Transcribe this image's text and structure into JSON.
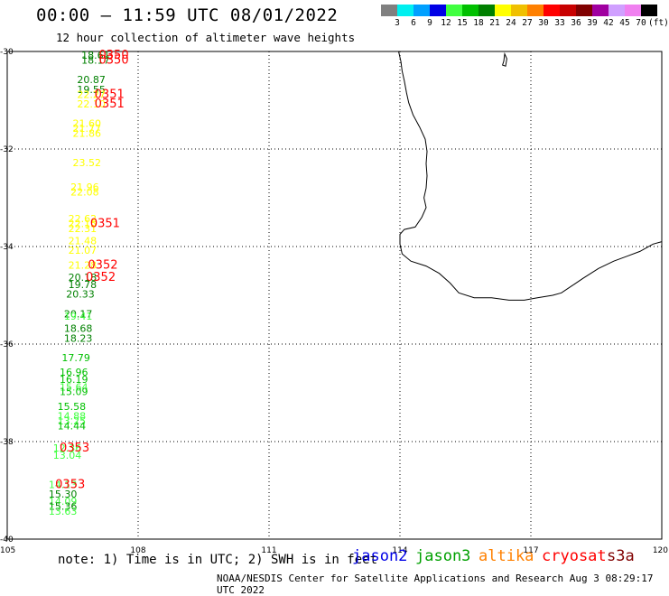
{
  "header": {
    "title": "00:00 – 11:59 UTC 08/01/2022",
    "subtitle": "12 hour collection of altimeter wave heights"
  },
  "colorbar": {
    "colors": [
      "#808080",
      "#00f0f0",
      "#00a0ff",
      "#0000e6",
      "#40ff40",
      "#00c000",
      "#008000",
      "#ffff00",
      "#f0c000",
      "#ff8000",
      "#ff0000",
      "#c80000",
      "#800000",
      "#a000a0",
      "#d0a0ff",
      "#f080f0",
      "#000000"
    ],
    "labels": [
      "3",
      "6",
      "9",
      "12",
      "15",
      "18",
      "21",
      "24",
      "27",
      "30",
      "33",
      "36",
      "39",
      "42",
      "45",
      "70"
    ],
    "unit": "(ft)"
  },
  "map": {
    "lon_range": [
      105,
      120
    ],
    "lat_range": [
      -40,
      -30
    ],
    "lon_ticks": [
      "105",
      "108",
      "111",
      "114",
      "117",
      "120"
    ],
    "lat_ticks": [
      "-30",
      "-32",
      "-34",
      "-36",
      "-38",
      "-40"
    ]
  },
  "wave_labels": [
    {
      "text": "18.61",
      "lon": 106.7,
      "lat": -30.15,
      "color": "#008000"
    },
    {
      "text": "18.17",
      "lon": 106.7,
      "lat": -30.25,
      "color": "#008000"
    },
    {
      "text": "20.87",
      "lon": 106.6,
      "lat": -30.65,
      "color": "#008000"
    },
    {
      "text": "19.55",
      "lon": 106.6,
      "lat": -30.85,
      "color": "#008000"
    },
    {
      "text": "22.27",
      "lon": 106.6,
      "lat": -30.95,
      "color": "#ffff00"
    },
    {
      "text": "22.10",
      "lon": 106.6,
      "lat": -31.15,
      "color": "#ffff00"
    },
    {
      "text": "21.60",
      "lon": 106.5,
      "lat": -31.55,
      "color": "#ffff00"
    },
    {
      "text": "21.77",
      "lon": 106.5,
      "lat": -31.65,
      "color": "#ffff00"
    },
    {
      "text": "21.86",
      "lon": 106.5,
      "lat": -31.75,
      "color": "#ffff00"
    },
    {
      "text": "23.52",
      "lon": 106.5,
      "lat": -32.35,
      "color": "#ffff00"
    },
    {
      "text": "21.96",
      "lon": 106.45,
      "lat": -32.85,
      "color": "#ffff00"
    },
    {
      "text": "22.08",
      "lon": 106.45,
      "lat": -32.95,
      "color": "#ffff00"
    },
    {
      "text": "22.62",
      "lon": 106.4,
      "lat": -33.5,
      "color": "#ffff00"
    },
    {
      "text": "22.15",
      "lon": 106.4,
      "lat": -33.6,
      "color": "#ffff00"
    },
    {
      "text": "22.31",
      "lon": 106.4,
      "lat": -33.7,
      "color": "#ffff00"
    },
    {
      "text": "21.48",
      "lon": 106.4,
      "lat": -33.95,
      "color": "#ffff00"
    },
    {
      "text": "21.07",
      "lon": 106.4,
      "lat": -34.15,
      "color": "#ffff00"
    },
    {
      "text": "21.28",
      "lon": 106.4,
      "lat": -34.45,
      "color": "#ffff00"
    },
    {
      "text": "20.18",
      "lon": 106.4,
      "lat": -34.7,
      "color": "#008000"
    },
    {
      "text": "19.78",
      "lon": 106.4,
      "lat": -34.85,
      "color": "#008000"
    },
    {
      "text": "20.33",
      "lon": 106.35,
      "lat": -35.05,
      "color": "#008000"
    },
    {
      "text": "20.17",
      "lon": 106.3,
      "lat": -35.45,
      "color": "#008000"
    },
    {
      "text": "19.41",
      "lon": 106.3,
      "lat": -35.5,
      "color": "#40ff40"
    },
    {
      "text": "18.68",
      "lon": 106.3,
      "lat": -35.75,
      "color": "#008000"
    },
    {
      "text": "18.23",
      "lon": 106.3,
      "lat": -35.95,
      "color": "#008000"
    },
    {
      "text": "17.79",
      "lon": 106.25,
      "lat": -36.35,
      "color": "#00c000"
    },
    {
      "text": "16.96",
      "lon": 106.2,
      "lat": -36.65,
      "color": "#00c000"
    },
    {
      "text": "16.19",
      "lon": 106.2,
      "lat": -36.8,
      "color": "#00c000"
    },
    {
      "text": "15.64",
      "lon": 106.2,
      "lat": -36.95,
      "color": "#40ff40"
    },
    {
      "text": "15.09",
      "lon": 106.2,
      "lat": -37.05,
      "color": "#00c000"
    },
    {
      "text": "15.58",
      "lon": 106.15,
      "lat": -37.35,
      "color": "#00c000"
    },
    {
      "text": "14.88",
      "lon": 106.15,
      "lat": -37.55,
      "color": "#40ff40"
    },
    {
      "text": "13.25",
      "lon": 106.15,
      "lat": -37.65,
      "color": "#40ff40"
    },
    {
      "text": "14.44",
      "lon": 106.15,
      "lat": -37.75,
      "color": "#00c000"
    },
    {
      "text": "12.36",
      "lon": 106.05,
      "lat": -38.2,
      "color": "#40ff40"
    },
    {
      "text": "13.04",
      "lon": 106.05,
      "lat": -38.35,
      "color": "#40ff40"
    },
    {
      "text": "14.13",
      "lon": 105.95,
      "lat": -38.95,
      "color": "#40ff40"
    },
    {
      "text": "15.30",
      "lon": 105.95,
      "lat": -39.15,
      "color": "#008000"
    },
    {
      "text": "14.09",
      "lon": 105.95,
      "lat": -39.3,
      "color": "#40ff40"
    },
    {
      "text": "15.36",
      "lon": 105.95,
      "lat": -39.4,
      "color": "#008000"
    },
    {
      "text": "13.63",
      "lon": 105.95,
      "lat": -39.5,
      "color": "#40ff40"
    }
  ],
  "time_labels": [
    {
      "text": "0350",
      "lon": 107.1,
      "lat": -30.15,
      "color": "#ff0000"
    },
    {
      "text": "0350",
      "lon": 107.1,
      "lat": -30.25,
      "color": "#ff0000"
    },
    {
      "text": "0351",
      "lon": 107.0,
      "lat": -30.95,
      "color": "#ff0000"
    },
    {
      "text": "0351",
      "lon": 107.0,
      "lat": -31.15,
      "color": "#ff0000"
    },
    {
      "text": "0351",
      "lon": 106.9,
      "lat": -33.6,
      "color": "#ff0000"
    },
    {
      "text": "0352",
      "lon": 106.85,
      "lat": -34.45,
      "color": "#ff0000"
    },
    {
      "text": "0352",
      "lon": 106.8,
      "lat": -34.7,
      "color": "#ff0000"
    },
    {
      "text": "0353",
      "lon": 106.2,
      "lat": -38.2,
      "color": "#ff0000"
    },
    {
      "text": "0353",
      "lon": 106.1,
      "lat": -38.95,
      "color": "#ff0000"
    }
  ],
  "coastline": [
    [
      113.97,
      -30.0
    ],
    [
      114.02,
      -30.2
    ],
    [
      114.05,
      -30.4
    ],
    [
      114.1,
      -30.6
    ],
    [
      114.15,
      -30.85
    ],
    [
      114.2,
      -31.05
    ],
    [
      114.3,
      -31.3
    ],
    [
      114.45,
      -31.55
    ],
    [
      114.58,
      -31.8
    ],
    [
      114.62,
      -32.05
    ],
    [
      114.6,
      -32.3
    ],
    [
      114.62,
      -32.55
    ],
    [
      114.6,
      -32.8
    ],
    [
      114.55,
      -33.0
    ],
    [
      114.6,
      -33.2
    ],
    [
      114.5,
      -33.4
    ],
    [
      114.35,
      -33.6
    ],
    [
      114.1,
      -33.65
    ],
    [
      114.0,
      -33.75
    ],
    [
      114.0,
      -33.95
    ],
    [
      114.05,
      -34.15
    ],
    [
      114.25,
      -34.3
    ],
    [
      114.6,
      -34.4
    ],
    [
      114.9,
      -34.55
    ],
    [
      115.15,
      -34.75
    ],
    [
      115.35,
      -34.95
    ],
    [
      115.7,
      -35.05
    ],
    [
      116.1,
      -35.05
    ],
    [
      116.5,
      -35.1
    ],
    [
      116.85,
      -35.1
    ],
    [
      117.15,
      -35.05
    ],
    [
      117.5,
      -35.0
    ],
    [
      117.7,
      -34.95
    ],
    [
      117.95,
      -34.8
    ],
    [
      118.2,
      -34.65
    ],
    [
      118.55,
      -34.45
    ],
    [
      118.9,
      -34.3
    ],
    [
      119.2,
      -34.2
    ],
    [
      119.5,
      -34.1
    ],
    [
      119.8,
      -33.95
    ],
    [
      120.0,
      -33.9
    ]
  ],
  "island": [
    [
      116.4,
      -30.05
    ],
    [
      116.45,
      -30.15
    ],
    [
      116.42,
      -30.3
    ],
    [
      116.35,
      -30.28
    ],
    [
      116.38,
      -30.2
    ]
  ],
  "legend": {
    "note": "note: 1) Time is in UTC; 2) SWH is in feet",
    "satellites": [
      {
        "name": "jason2",
        "color": "#0000e6"
      },
      {
        "name": "jason3",
        "color": "#00a000"
      },
      {
        "name": "altika",
        "color": "#ff8000"
      },
      {
        "name": "cryosat",
        "color": "#ff0000"
      },
      {
        "name": "s3a",
        "color": "#800000"
      }
    ]
  },
  "footer": {
    "credit": "NOAA/NESDIS Center for Satellite Applications and Research   Aug  3 08:29:17 UTC 2022"
  }
}
